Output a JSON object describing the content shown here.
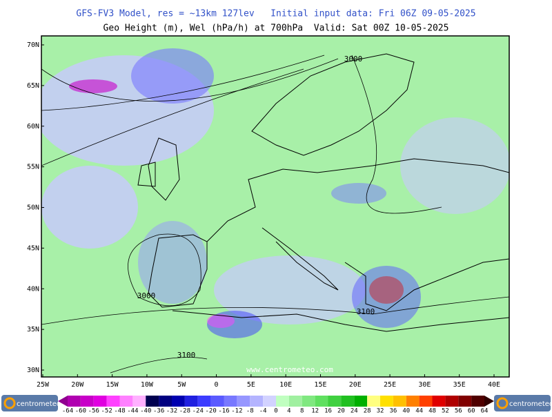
{
  "header": {
    "line1": "GFS-FV3 Model, res = ~13km 127lev   Initial input data: Fri 06Z 09-05-2025",
    "line2": "Geo Height (m), Wel (hPa/h) at 700hPa  Valid: Sat 00Z 10-05-2025"
  },
  "map": {
    "lat_labels": [
      "70N",
      "65N",
      "60N",
      "55N",
      "50N",
      "45N",
      "40N",
      "35N",
      "30N"
    ],
    "lon_labels": [
      "25W",
      "20W",
      "15W",
      "10W",
      "5W",
      "0",
      "5E",
      "10E",
      "15E",
      "20E",
      "25E",
      "30E",
      "35E",
      "40E"
    ],
    "contour_labels": [
      "3000",
      "3000",
      "3100",
      "3100"
    ],
    "watermark": "www.centrometeo.com"
  },
  "colorbar": {
    "ticks": [
      -64,
      -60,
      -56,
      -52,
      -48,
      -44,
      -40,
      -36,
      -32,
      -28,
      -24,
      -20,
      -16,
      -12,
      -8,
      -4,
      0,
      4,
      8,
      12,
      16,
      20,
      24,
      28,
      32,
      36,
      40,
      44,
      48,
      52,
      56,
      60,
      64
    ],
    "colors": [
      "#b000b0",
      "#c800c8",
      "#e000e0",
      "#ff40ff",
      "#ff80ff",
      "#ffb0ff",
      "#000050",
      "#000080",
      "#0000b0",
      "#2020e0",
      "#3c3cff",
      "#5a5aff",
      "#7878ff",
      "#9696ff",
      "#b4b4ff",
      "#d2d2ff",
      "#c0ffc0",
      "#a0f0a0",
      "#80e880",
      "#60e060",
      "#40d040",
      "#20c020",
      "#00b000",
      "#ffff80",
      "#ffe000",
      "#ffc000",
      "#ff8000",
      "#ff4000",
      "#e00000",
      "#b00000",
      "#800000",
      "#500000"
    ],
    "arrow_colors": [
      "#900090",
      "#300000"
    ]
  },
  "logos": [
    "centrometeo",
    "centrometeo"
  ]
}
